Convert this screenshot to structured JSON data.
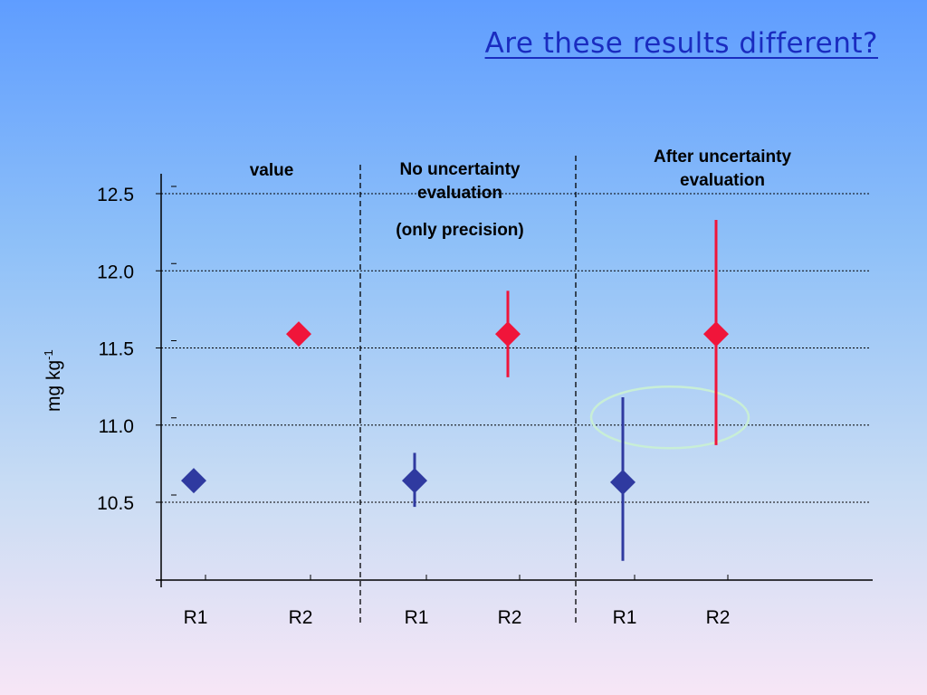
{
  "slide": {
    "title": "Are these results different?"
  },
  "sections": [
    {
      "lines": [
        "value"
      ]
    },
    {
      "lines": [
        "No uncertainty",
        "evaluation",
        "(only precision)"
      ]
    },
    {
      "lines": [
        "After uncertainty",
        "evaluation"
      ]
    }
  ],
  "colors": {
    "R1": "#2f3aa0",
    "R2": "#f0153a",
    "ellipse": "#c8eed6"
  },
  "chart_data": {
    "type": "scatter",
    "ylabel": "mg kg",
    "ylabel_superscript": "-1",
    "yticks": [
      "12.5",
      "12.0",
      "11.5",
      "11.0",
      "10.5"
    ],
    "ytick_values": [
      12.5,
      12.0,
      11.5,
      11.0,
      10.5
    ],
    "ylim": [
      10.0,
      12.6
    ],
    "grid": true,
    "categories": [
      "R1",
      "R2",
      "R1",
      "R2",
      "R1",
      "R2"
    ],
    "points": [
      {
        "label": "R1",
        "group": 0,
        "y": 10.64,
        "err_low": null,
        "err_high": null,
        "color_key": "R1"
      },
      {
        "label": "R2",
        "group": 0,
        "y": 11.59,
        "err_low": null,
        "err_high": null,
        "color_key": "R2"
      },
      {
        "label": "R1",
        "group": 1,
        "y": 10.64,
        "err_low": 10.47,
        "err_high": 10.82,
        "color_key": "R1"
      },
      {
        "label": "R2",
        "group": 1,
        "y": 11.59,
        "err_low": 11.31,
        "err_high": 11.87,
        "color_key": "R2"
      },
      {
        "label": "R1",
        "group": 2,
        "y": 10.63,
        "err_low": 10.12,
        "err_high": 11.18,
        "color_key": "R1"
      },
      {
        "label": "R2",
        "group": 2,
        "y": 11.59,
        "err_low": 10.87,
        "err_high": 12.33,
        "color_key": "R2"
      }
    ],
    "highlight": {
      "shape": "ellipse",
      "center_y": 11.05,
      "around_group": 2
    }
  }
}
